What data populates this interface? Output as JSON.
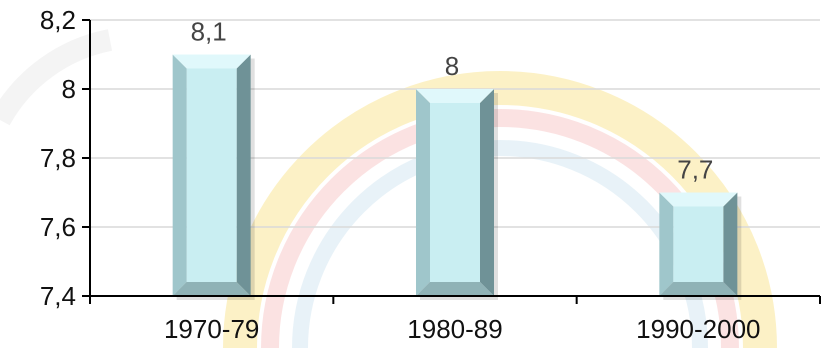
{
  "chart_data": {
    "type": "bar",
    "title": "",
    "xlabel": "",
    "ylabel": "",
    "categories": [
      "1970-79",
      "1980-89",
      "1990-2000"
    ],
    "values": [
      8.1,
      8.0,
      7.7
    ],
    "value_labels": [
      "8,1",
      "8",
      "7,7"
    ],
    "ylim": [
      7.4,
      8.2
    ],
    "y_ticks": [
      7.4,
      7.6,
      7.8,
      8.0,
      8.2
    ],
    "y_tick_labels": [
      "7,4",
      "7,6",
      "7,8",
      "8",
      "8,2"
    ],
    "grid": true,
    "legend": "none",
    "colors": {
      "bar_face": "#c9eef2",
      "bar_left": "#9fc6cb",
      "bar_right": "#6f9297",
      "bar_top": "#e0f8fb",
      "bar_bottom": "#8fb2b6",
      "gridline": "#d9d9d9",
      "axis": "#000000"
    }
  }
}
